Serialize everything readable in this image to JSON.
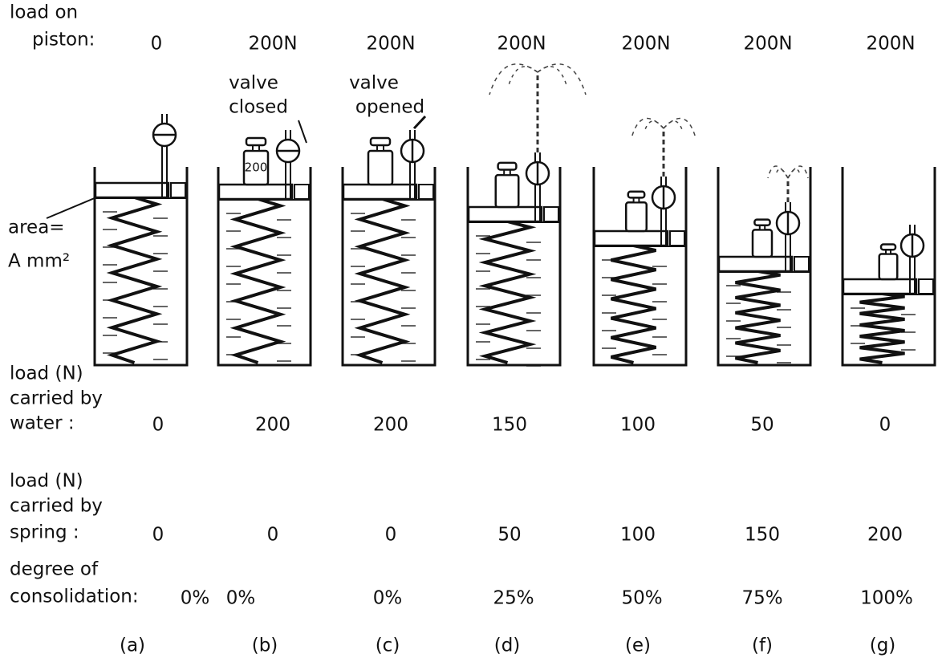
{
  "load_on_piston": {
    "label": [
      "load on",
      "piston:"
    ],
    "values": [
      "0",
      "200N",
      "200N",
      "200N",
      "200N",
      "200N",
      "200N"
    ]
  },
  "annotations": {
    "valve_closed": [
      "valve",
      "closed"
    ],
    "valve_opened": [
      "valve",
      "opened"
    ],
    "area": [
      "area=",
      "A mm²"
    ],
    "weight": "200"
  },
  "water": {
    "label": [
      "load (N)",
      "carried by",
      "water :"
    ],
    "values": [
      0,
      200,
      200,
      150,
      100,
      50,
      0
    ]
  },
  "spring": {
    "label": [
      "load (N)",
      "carried by",
      "spring :"
    ],
    "values": [
      0,
      0,
      0,
      50,
      100,
      150,
      200
    ]
  },
  "consolidation": {
    "label": [
      "degree of",
      "consolidation:"
    ],
    "values": [
      "0%",
      "0%",
      "0%",
      "25%",
      "50%",
      "75%",
      "100%"
    ]
  },
  "panels": [
    "(a)",
    "(b)",
    "(c)",
    "(d)",
    "(e)",
    "(f)",
    "(g)"
  ]
}
